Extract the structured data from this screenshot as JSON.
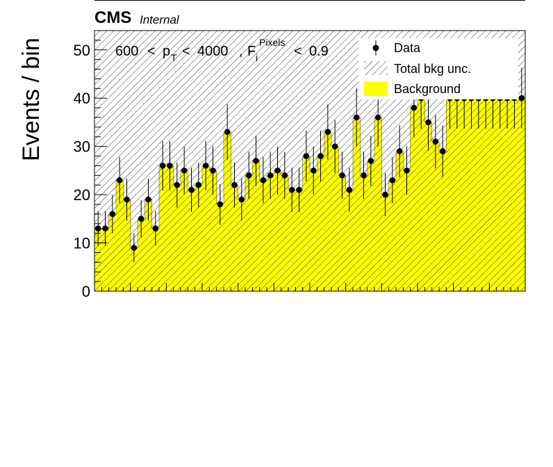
{
  "header": {
    "experiment": "CMS",
    "status": "Internal"
  },
  "cut_label": {
    "pt_low": "600",
    "lt1": "<",
    "p": "p",
    "T": "T",
    "lt2": "<",
    "pt_high": "4000",
    "sep": ",",
    "F": "F",
    "sub_i": "i",
    "sup": "Pixels",
    "lt3": "<",
    "cut": "0.9"
  },
  "legend": {
    "data": "Data",
    "unc": "Total bkg unc.",
    "bkg": "Background"
  },
  "colors": {
    "background_fill": "#ffff00",
    "hatch": "#000000",
    "data_marker": "#000000"
  },
  "chart_data": {
    "type": "bar",
    "ylabel": "Events / bin",
    "xlabel": "",
    "ylim": [
      0,
      54
    ],
    "yticks": [
      0,
      10,
      20,
      30,
      40,
      50
    ],
    "bins": 60,
    "data_values": [
      13,
      13,
      16,
      23,
      19,
      9,
      15,
      19,
      13,
      26,
      26,
      22,
      25,
      21,
      22,
      26,
      25,
      18,
      33,
      22,
      19,
      24,
      27,
      23,
      24,
      25,
      24,
      21,
      21,
      28,
      25,
      28,
      33,
      30,
      24,
      21,
      36,
      24,
      27,
      36,
      20,
      23,
      29,
      25,
      38,
      40,
      35,
      31,
      29,
      40,
      40,
      40,
      40,
      40,
      40,
      40,
      40,
      40,
      40,
      40
    ],
    "background_values": [
      13,
      13,
      16,
      23,
      19,
      9,
      15,
      19,
      13,
      26,
      26,
      22,
      25,
      21,
      22,
      26,
      25,
      18,
      33,
      22,
      19,
      24,
      27,
      23,
      24,
      25,
      24,
      21,
      21,
      28,
      25,
      28,
      33,
      30,
      24,
      21,
      36,
      24,
      27,
      36,
      20,
      23,
      29,
      25,
      38,
      40,
      35,
      31,
      29,
      40,
      40,
      40,
      40,
      40,
      40,
      40,
      40,
      40,
      40,
      40
    ],
    "total_bkg_unc_up_to": 54,
    "legend_position": "top-right",
    "grid": false
  }
}
